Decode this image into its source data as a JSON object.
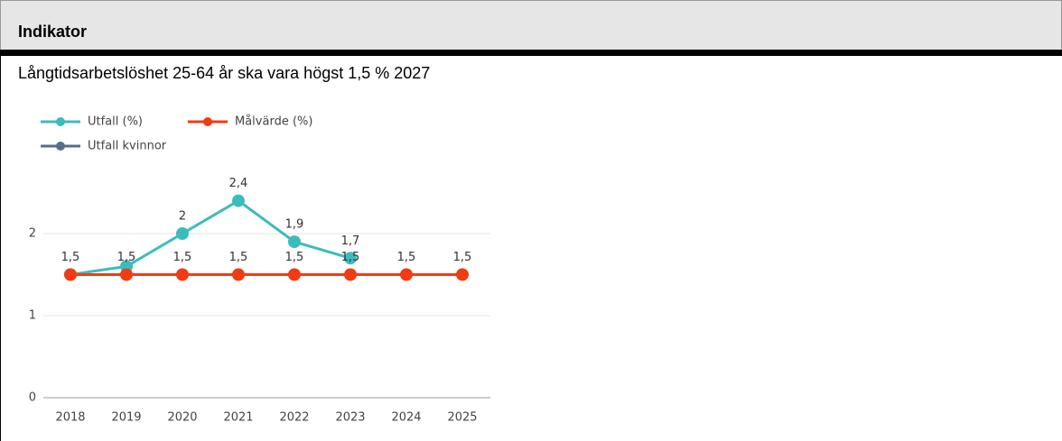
{
  "header": {
    "title": "Indikator"
  },
  "chart_data": {
    "type": "line",
    "title": "Långtidsarbetslöshet 25-64 år ska vara högst 1,5 % 2027",
    "categories": [
      "2018",
      "2019",
      "2020",
      "2021",
      "2022",
      "2023",
      "2024",
      "2025"
    ],
    "series": [
      {
        "name": "Utfall (%)",
        "color": "#3bbcbc",
        "values": [
          1.5,
          1.6,
          2,
          2.4,
          1.9,
          1.7,
          null,
          null
        ],
        "value_labels": [
          null,
          null,
          "2",
          "2,4",
          "1,9",
          "1,7",
          null,
          null
        ]
      },
      {
        "name": "Målvärde (%)",
        "color": "#f03c14",
        "values": [
          1.5,
          1.5,
          1.5,
          1.5,
          1.5,
          1.5,
          1.5,
          1.5
        ],
        "value_labels": [
          "1,5",
          "1,5",
          "1,5",
          "1,5",
          "1,5",
          "1,5",
          "1,5",
          "1,5"
        ]
      },
      {
        "name": "Utfall kvinnor",
        "color": "#566e89",
        "values": [
          null,
          null,
          null,
          null,
          null,
          null,
          null,
          null
        ]
      }
    ],
    "ylim": [
      0,
      2.5
    ],
    "yticks": [
      0,
      1,
      2
    ],
    "grid": true,
    "legend": "top"
  }
}
